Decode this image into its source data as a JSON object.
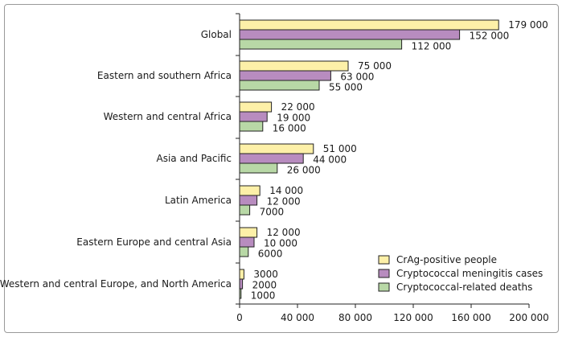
{
  "chart_data": {
    "type": "bar",
    "orientation": "horizontal",
    "title": "",
    "xlabel": "",
    "ylabel": "",
    "xlim": [
      0,
      200000
    ],
    "xticks": [
      0,
      40000,
      80000,
      120000,
      160000,
      200000
    ],
    "xtick_labels": [
      "0",
      "40 000",
      "80 000",
      "120 000",
      "160 000",
      "200 000"
    ],
    "categories": [
      "Global",
      "Eastern and southern Africa",
      "Western and central Africa",
      "Asia and Pacific",
      "Latin America",
      "Eastern Europe and central Asia",
      "Western and central Europe, and North America"
    ],
    "series": [
      {
        "name": "CrAg-positive people",
        "color": "#fdf0a8",
        "values": [
          179000,
          75000,
          22000,
          51000,
          14000,
          12000,
          3000
        ],
        "labels": [
          "179 000",
          "75 000",
          "22 000",
          "51 000",
          "14 000",
          "12 000",
          "3000"
        ]
      },
      {
        "name": "Cryptococcal meningitis cases",
        "color": "#b88cbf",
        "values": [
          152000,
          63000,
          19000,
          44000,
          12000,
          10000,
          2000
        ],
        "labels": [
          "152 000",
          "63 000",
          "19 000",
          "44 000",
          "12 000",
          "10 000",
          "2000"
        ]
      },
      {
        "name": "Cryptococcal-related deaths",
        "color": "#b8d8a6",
        "values": [
          112000,
          55000,
          16000,
          26000,
          7000,
          6000,
          1000
        ],
        "labels": [
          "112 000",
          "55 000",
          "16 000",
          "26 000",
          "7000",
          "6000",
          "1000"
        ]
      }
    ],
    "grid": false,
    "legend_position": "bottom-right"
  }
}
